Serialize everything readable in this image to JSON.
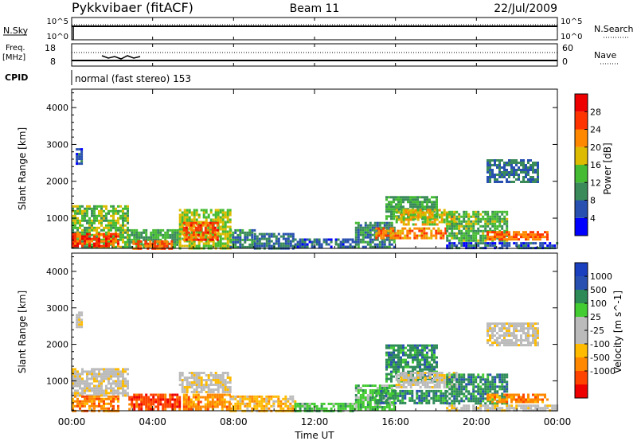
{
  "header": {
    "title": "Pykkvibaer (fitACF)",
    "beam": "Beam 11",
    "date": "22/Jul/2009"
  },
  "nsky_panel": {
    "left_label": "N.Sky",
    "left_ticks": [
      "10^5",
      "10^0"
    ],
    "right_label": "N.Search",
    "right_ticks": [
      "10^5",
      "10^0"
    ]
  },
  "freq_panel": {
    "left_label_line1": "Freq.",
    "left_label_line2": "[MHz]",
    "left_ticks": [
      "18",
      "8"
    ],
    "right_label": "Nave",
    "right_ticks": [
      "60",
      "0"
    ]
  },
  "cpid": {
    "label": "CPID",
    "value": "normal (fast stereo) 153"
  },
  "x_axis": {
    "title": "Time UT",
    "ticks": [
      "00:00",
      "04:00",
      "08:00",
      "12:00",
      "16:00",
      "20:00",
      "00:00"
    ]
  },
  "colors": {
    "power": [
      "#0000ff",
      "#2850b0",
      "#3a8a5a",
      "#44bb33",
      "#ddbb00",
      "#ff8800",
      "#ff3300",
      "#ee0000"
    ],
    "velocity": [
      "#ee0000",
      "#ff4400",
      "#ff8800",
      "#ffbb00",
      "#bbbbbb",
      "#bbbbbb",
      "#44cc33",
      "#2e8b57",
      "#2850b0",
      "#1a3fbf"
    ],
    "ground_scatter": "#bbbbbb"
  },
  "chart_data": [
    {
      "type": "heatmap",
      "name": "power",
      "xlabel": "",
      "ylabel": "Slant Range [km]",
      "x_range_hours": [
        0,
        24
      ],
      "ylim": [
        180,
        4500
      ],
      "yticks": [
        1000,
        2000,
        3000,
        4000
      ],
      "colorbar": {
        "label": "Power [dB]",
        "range": [
          0,
          32
        ],
        "tick_values": [
          4,
          8,
          12,
          16,
          20,
          24,
          28
        ],
        "tick_labels": [
          "4",
          "8",
          "12",
          "16",
          "20",
          "24",
          "28"
        ]
      },
      "regions": [
        {
          "t0": 0.0,
          "t1": 2.8,
          "r0": 200,
          "r1": 1350,
          "value": 14
        },
        {
          "t0": 0.0,
          "t1": 2.3,
          "r0": 250,
          "r1": 600,
          "value": 26
        },
        {
          "t0": 0.2,
          "t1": 0.5,
          "r0": 2500,
          "r1": 2900,
          "value": 6
        },
        {
          "t0": 2.8,
          "t1": 5.3,
          "r0": 200,
          "r1": 700,
          "value": 12
        },
        {
          "t0": 3.0,
          "t1": 5.0,
          "r0": 200,
          "r1": 400,
          "value": 24
        },
        {
          "t0": 5.3,
          "t1": 7.8,
          "r0": 200,
          "r1": 1250,
          "value": 16
        },
        {
          "t0": 5.5,
          "t1": 7.2,
          "r0": 400,
          "r1": 900,
          "value": 25
        },
        {
          "t0": 7.8,
          "t1": 9.0,
          "r0": 200,
          "r1": 700,
          "value": 10
        },
        {
          "t0": 9.0,
          "t1": 11.0,
          "r0": 200,
          "r1": 600,
          "value": 8
        },
        {
          "t0": 11.0,
          "t1": 14.0,
          "r0": 200,
          "r1": 450,
          "value": 6
        },
        {
          "t0": 14.0,
          "t1": 16.0,
          "r0": 200,
          "r1": 900,
          "value": 10
        },
        {
          "t0": 15.0,
          "t1": 18.5,
          "r0": 450,
          "r1": 750,
          "value": 22
        },
        {
          "t0": 15.5,
          "t1": 18.0,
          "r0": 1000,
          "r1": 1600,
          "value": 12
        },
        {
          "t0": 16.0,
          "t1": 19.0,
          "r0": 850,
          "r1": 1250,
          "value": 18
        },
        {
          "t0": 18.5,
          "t1": 21.5,
          "r0": 400,
          "r1": 1200,
          "value": 13
        },
        {
          "t0": 20.5,
          "t1": 23.5,
          "r0": 450,
          "r1": 650,
          "value": 24
        },
        {
          "t0": 20.5,
          "t1": 23.0,
          "r0": 2000,
          "r1": 2600,
          "value": 8
        },
        {
          "t0": 18.5,
          "t1": 24.0,
          "r0": 200,
          "r1": 350,
          "value": 6
        }
      ]
    },
    {
      "type": "heatmap",
      "name": "velocity",
      "xlabel": "Time UT",
      "ylabel": "Slant Range [km]",
      "x_range_hours": [
        0,
        24
      ],
      "ylim": [
        180,
        4500
      ],
      "yticks": [
        1000,
        2000,
        3000,
        4000
      ],
      "colorbar": {
        "label": "Velocity [m s^-1]",
        "bins": 10,
        "tick_labels": [
          "-1000",
          "-500",
          "-100",
          "-25",
          "25",
          "100",
          "500",
          "1000"
        ]
      },
      "regions": [
        {
          "t0": 0.0,
          "t1": 2.8,
          "r0": 600,
          "r1": 1350,
          "bin": 4
        },
        {
          "t0": 0.2,
          "t1": 0.5,
          "r0": 2500,
          "r1": 2900,
          "bin": 4
        },
        {
          "t0": 0.0,
          "t1": 2.3,
          "r0": 200,
          "r1": 600,
          "bin": 2
        },
        {
          "t0": 2.8,
          "t1": 5.3,
          "r0": 200,
          "r1": 650,
          "bin": 1
        },
        {
          "t0": 5.3,
          "t1": 7.8,
          "r0": 700,
          "r1": 1250,
          "bin": 4
        },
        {
          "t0": 5.5,
          "t1": 7.8,
          "r0": 250,
          "r1": 650,
          "bin": 2
        },
        {
          "t0": 7.8,
          "t1": 11.0,
          "r0": 200,
          "r1": 600,
          "bin": 3
        },
        {
          "t0": 11.0,
          "t1": 14.0,
          "r0": 200,
          "r1": 400,
          "bin": 6
        },
        {
          "t0": 14.0,
          "t1": 16.0,
          "r0": 200,
          "r1": 900,
          "bin": 6
        },
        {
          "t0": 15.0,
          "t1": 18.5,
          "r0": 400,
          "r1": 750,
          "bin": 7
        },
        {
          "t0": 15.5,
          "t1": 18.0,
          "r0": 1000,
          "r1": 2000,
          "bin": 7
        },
        {
          "t0": 16.0,
          "t1": 19.0,
          "r0": 850,
          "r1": 1250,
          "bin": 4
        },
        {
          "t0": 18.5,
          "t1": 21.5,
          "r0": 400,
          "r1": 1200,
          "bin": 7
        },
        {
          "t0": 20.5,
          "t1": 23.5,
          "r0": 450,
          "r1": 650,
          "bin": 2
        },
        {
          "t0": 20.5,
          "t1": 23.0,
          "r0": 2000,
          "r1": 2600,
          "bin": 4
        },
        {
          "t0": 18.5,
          "t1": 24.0,
          "r0": 200,
          "r1": 350,
          "bin": 4
        }
      ]
    }
  ]
}
